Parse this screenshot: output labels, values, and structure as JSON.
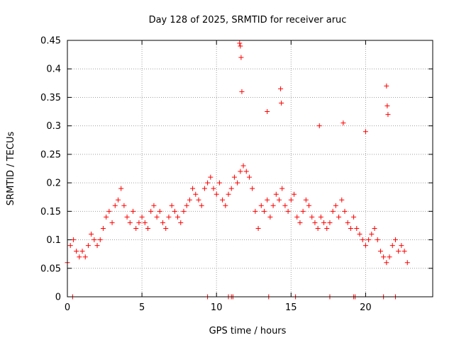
{
  "chart_data": {
    "type": "scatter",
    "title": "Day 128 of 2025, SRMTID for receiver aruc",
    "xlabel": "GPS time / hours",
    "ylabel": "SRMTID / TECUs",
    "xlim": [
      0,
      24.5
    ],
    "ylim": [
      0,
      0.45
    ],
    "xticks": [
      0,
      5,
      10,
      15,
      20
    ],
    "yticks": [
      0,
      0.05,
      0.1,
      0.15,
      0.2,
      0.25,
      0.3,
      0.35,
      0.4,
      0.45
    ],
    "xtick_labels": [
      "0",
      "5",
      "10",
      "15",
      "20"
    ],
    "ytick_labels": [
      "0",
      "0.05",
      "0.1",
      "0.15",
      "0.2",
      "0.25",
      "0.3",
      "0.35",
      "0.4",
      "0.45"
    ],
    "grid": true,
    "marker": "+",
    "color": "#ff0000",
    "series": [
      {
        "name": "SRMTID",
        "x": [
          0.0,
          0.2,
          0.4,
          0.6,
          0.8,
          1.0,
          1.2,
          1.4,
          1.6,
          1.8,
          2.0,
          2.2,
          2.4,
          2.6,
          2.8,
          3.0,
          3.2,
          3.4,
          3.6,
          3.8,
          4.0,
          4.2,
          4.4,
          4.6,
          4.8,
          5.0,
          5.2,
          5.4,
          5.6,
          5.8,
          6.0,
          6.2,
          6.4,
          6.6,
          6.8,
          7.0,
          7.2,
          7.4,
          7.6,
          7.8,
          8.0,
          8.2,
          8.4,
          8.6,
          8.8,
          9.0,
          9.2,
          9.4,
          9.6,
          9.8,
          10.0,
          10.2,
          10.4,
          10.6,
          10.8,
          11.0,
          11.2,
          11.4,
          11.6,
          11.8,
          12.0,
          12.2,
          12.4,
          12.6,
          12.8,
          13.0,
          13.2,
          13.4,
          13.6,
          13.8,
          14.0,
          14.2,
          14.4,
          14.6,
          14.8,
          15.0,
          15.2,
          15.4,
          15.6,
          15.8,
          16.0,
          16.2,
          16.4,
          16.6,
          16.8,
          17.0,
          17.2,
          17.4,
          17.6,
          17.8,
          18.0,
          18.2,
          18.4,
          18.6,
          18.8,
          19.0,
          19.2,
          19.4,
          19.6,
          19.8,
          20.0,
          20.2,
          20.4,
          20.6,
          20.8,
          21.0,
          21.2,
          21.4,
          21.6,
          21.8,
          22.0,
          22.2,
          22.4,
          22.6,
          22.8,
          11.55,
          11.6,
          11.65,
          11.7,
          14.3,
          14.35,
          21.4,
          21.45,
          21.5,
          13.4,
          16.9,
          18.5,
          20.0,
          0.35,
          9.4,
          10.8,
          11.0,
          11.1,
          15.3,
          17.6,
          19.2,
          21.2,
          22.0,
          13.5,
          19.3
        ],
        "y": [
          0.06,
          0.09,
          0.1,
          0.08,
          0.07,
          0.08,
          0.07,
          0.09,
          0.11,
          0.1,
          0.09,
          0.1,
          0.12,
          0.14,
          0.15,
          0.13,
          0.16,
          0.17,
          0.19,
          0.16,
          0.14,
          0.13,
          0.15,
          0.12,
          0.13,
          0.14,
          0.13,
          0.12,
          0.15,
          0.16,
          0.14,
          0.15,
          0.13,
          0.12,
          0.14,
          0.16,
          0.15,
          0.14,
          0.13,
          0.15,
          0.16,
          0.17,
          0.19,
          0.18,
          0.17,
          0.16,
          0.19,
          0.2,
          0.21,
          0.19,
          0.18,
          0.2,
          0.17,
          0.16,
          0.18,
          0.19,
          0.21,
          0.2,
          0.22,
          0.23,
          0.22,
          0.21,
          0.19,
          0.15,
          0.12,
          0.16,
          0.15,
          0.17,
          0.14,
          0.16,
          0.18,
          0.17,
          0.19,
          0.16,
          0.15,
          0.17,
          0.18,
          0.14,
          0.13,
          0.15,
          0.17,
          0.16,
          0.14,
          0.13,
          0.12,
          0.14,
          0.13,
          0.12,
          0.13,
          0.15,
          0.16,
          0.14,
          0.17,
          0.15,
          0.13,
          0.12,
          0.14,
          0.12,
          0.11,
          0.1,
          0.09,
          0.1,
          0.11,
          0.12,
          0.1,
          0.08,
          0.07,
          0.06,
          0.07,
          0.09,
          0.1,
          0.08,
          0.09,
          0.08,
          0.06,
          0.445,
          0.44,
          0.42,
          0.36,
          0.365,
          0.34,
          0.37,
          0.335,
          0.32,
          0.325,
          0.3,
          0.305,
          0.29,
          0.0,
          0.0,
          0.0,
          0.0,
          0.0,
          0.0,
          0.0,
          0.0,
          0.0,
          0.0,
          0.0,
          0.0
        ]
      }
    ]
  }
}
